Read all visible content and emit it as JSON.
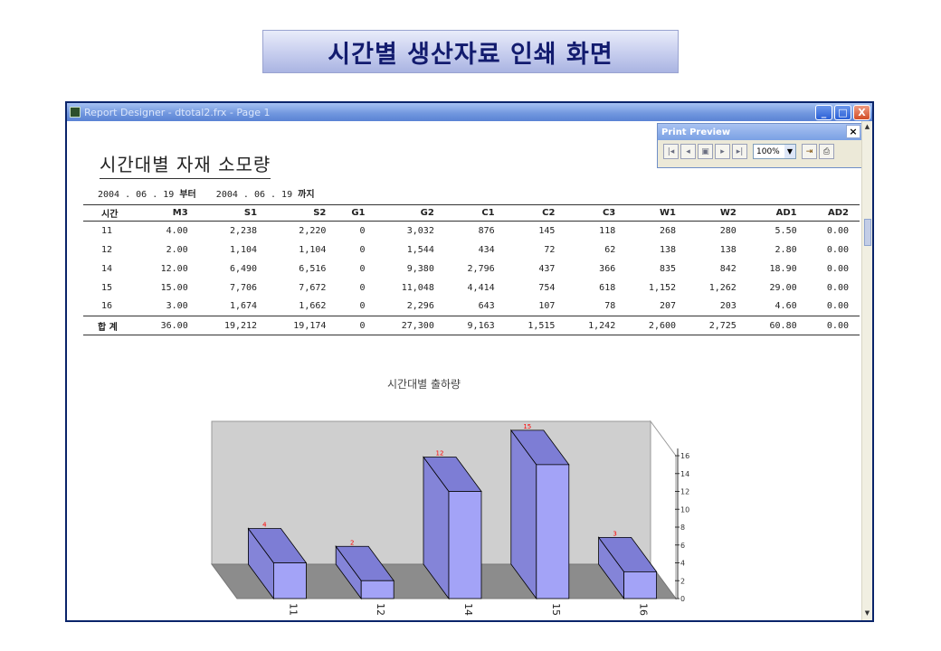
{
  "banner": {
    "title": "시간별 생산자료 인쇄 화면"
  },
  "window": {
    "title": "Report Designer - dtotal2.frx - Page 1",
    "controls": {
      "minimize": "_",
      "maximize": "□",
      "close": "X"
    }
  },
  "print_preview": {
    "title": "Print Preview",
    "close": "×",
    "zoom": "100%",
    "buttons": [
      "first-page-icon",
      "prev-page-icon",
      "go-to-page-icon",
      "next-page-icon",
      "last-page-icon",
      "close-preview-icon",
      "print-icon"
    ]
  },
  "report": {
    "title": "시간대별 자재 소모량",
    "date_from": "2004 . 06 . 19",
    "from_label": "부터",
    "date_to": "2004 . 06 . 19",
    "to_label": "까지",
    "columns": [
      "시간",
      "M3",
      "S1",
      "S2",
      "G1",
      "G2",
      "C1",
      "C2",
      "C3",
      "W1",
      "W2",
      "AD1",
      "AD2"
    ],
    "rows": [
      [
        "11",
        "4.00",
        "2,238",
        "2,220",
        "0",
        "3,032",
        "876",
        "145",
        "118",
        "268",
        "280",
        "5.50",
        "0.00"
      ],
      [
        "12",
        "2.00",
        "1,104",
        "1,104",
        "0",
        "1,544",
        "434",
        "72",
        "62",
        "138",
        "138",
        "2.80",
        "0.00"
      ],
      [
        "14",
        "12.00",
        "6,490",
        "6,516",
        "0",
        "9,380",
        "2,796",
        "437",
        "366",
        "835",
        "842",
        "18.90",
        "0.00"
      ],
      [
        "15",
        "15.00",
        "7,706",
        "7,672",
        "0",
        "11,048",
        "4,414",
        "754",
        "618",
        "1,152",
        "1,262",
        "29.00",
        "0.00"
      ],
      [
        "16",
        "3.00",
        "1,674",
        "1,662",
        "0",
        "2,296",
        "643",
        "107",
        "78",
        "207",
        "203",
        "4.60",
        "0.00"
      ]
    ],
    "total": [
      "합    계",
      "36.00",
      "19,212",
      "19,174",
      "0",
      "27,300",
      "9,163",
      "1,515",
      "1,242",
      "2,600",
      "2,725",
      "60.80",
      "0.00"
    ]
  },
  "chart_data": {
    "type": "bar",
    "title": "시간대별 출하량",
    "categories": [
      "11",
      "12",
      "14",
      "15",
      "16"
    ],
    "values": [
      4,
      2,
      12,
      15,
      3
    ],
    "data_labels": [
      "4",
      "2",
      "12",
      "15",
      "3"
    ],
    "ylim": [
      0,
      16
    ],
    "yticks": [
      0,
      2,
      4,
      6,
      8,
      10,
      12,
      14,
      16
    ],
    "three_d": true,
    "colors": {
      "bar_front": "#a3a3f7",
      "bar_top": "#7d7dd5",
      "bar_side": "#8484d8",
      "back_wall": "#cfcfcf",
      "floor": "#8c8c8c",
      "data_label": "#ff0000"
    }
  }
}
